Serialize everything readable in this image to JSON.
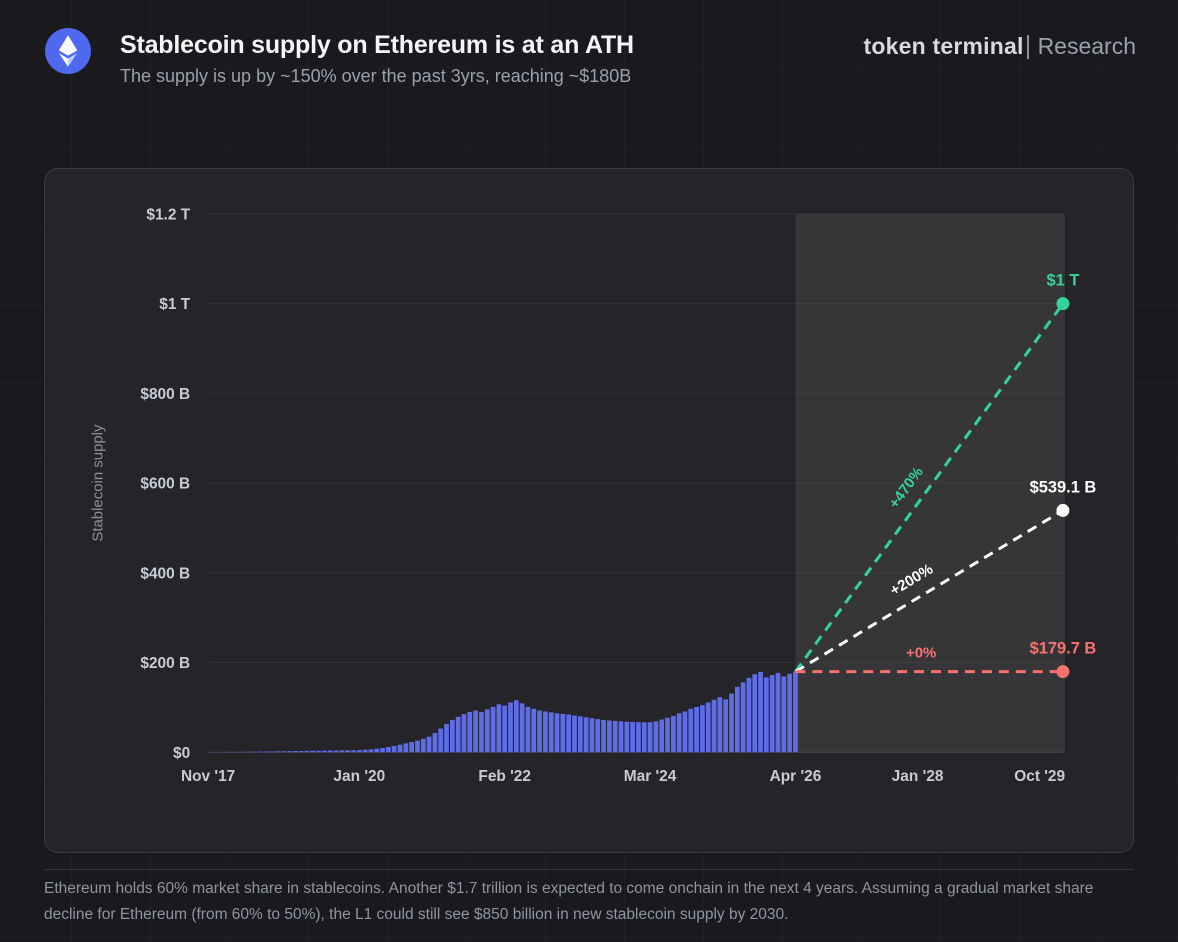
{
  "header": {
    "title": "Stablecoin supply on Ethereum is at an ATH",
    "subtitle": "The supply is up by ~150% over the past 3yrs, reaching ~$180B",
    "brand": "token terminal",
    "brand_suffix": "Research",
    "logo_icon": "ethereum-icon",
    "logo_color": "#4e68f0"
  },
  "footnote": "Ethereum holds 60% market share in stablecoins. Another $1.7 trillion is expected to come onchain in the next 4 years. Assuming a gradual market share decline for Ethereum (from 60% to 50%), the L1 could still see $850 billion in new stablecoin supply by 2030.",
  "chart_data": {
    "type": "area",
    "title": "",
    "xlabel": "",
    "ylabel": "Stablecoin supply",
    "x_unit": "months since Nov 2017",
    "ylim": [
      0,
      1200
    ],
    "grid": true,
    "y_ticks": [
      {
        "label": "$0",
        "v": 0
      },
      {
        "label": "$200 B",
        "v": 200
      },
      {
        "label": "$400 B",
        "v": 400
      },
      {
        "label": "$600 B",
        "v": 600
      },
      {
        "label": "$800 B",
        "v": 800
      },
      {
        "label": "$1 T",
        "v": 1000
      },
      {
        "label": "$1.2 T",
        "v": 1200
      }
    ],
    "x_ticks": [
      {
        "label": "Nov '17",
        "m": 0
      },
      {
        "label": "Jan '20",
        "m": 26
      },
      {
        "label": "Feb '22",
        "m": 51
      },
      {
        "label": "Mar '24",
        "m": 76
      },
      {
        "label": "Apr '26",
        "m": 101
      },
      {
        "label": "Jan '28",
        "m": 122
      },
      {
        "label": "Oct '29",
        "m": 143
      }
    ],
    "history": {
      "name": "Stablecoin supply on Ethereum ($B)",
      "color": "#5e6ce6",
      "points": [
        [
          0,
          0.3
        ],
        [
          3,
          0.6
        ],
        [
          6,
          1.0
        ],
        [
          9,
          1.5
        ],
        [
          12,
          2.2
        ],
        [
          15,
          2.8
        ],
        [
          18,
          3.4
        ],
        [
          21,
          3.9
        ],
        [
          24,
          4.4
        ],
        [
          26,
          5.0
        ],
        [
          28,
          6.5
        ],
        [
          30,
          9.5
        ],
        [
          32,
          14
        ],
        [
          33,
          17
        ],
        [
          34,
          20
        ],
        [
          35,
          23
        ],
        [
          36,
          26
        ],
        [
          37,
          30
        ],
        [
          38,
          35
        ],
        [
          39,
          43
        ],
        [
          40,
          53
        ],
        [
          41,
          63
        ],
        [
          42,
          72
        ],
        [
          43,
          79
        ],
        [
          44,
          85
        ],
        [
          45,
          90
        ],
        [
          46,
          93
        ],
        [
          47,
          90
        ],
        [
          48,
          96
        ],
        [
          49,
          101
        ],
        [
          50,
          107
        ],
        [
          51,
          104
        ],
        [
          52,
          111
        ],
        [
          53,
          116
        ],
        [
          54,
          109
        ],
        [
          55,
          101
        ],
        [
          56,
          97
        ],
        [
          57,
          93
        ],
        [
          58,
          91
        ],
        [
          59,
          89
        ],
        [
          60,
          87
        ],
        [
          62,
          84
        ],
        [
          64,
          80
        ],
        [
          66,
          76
        ],
        [
          68,
          72
        ],
        [
          70,
          70
        ],
        [
          72,
          68
        ],
        [
          74,
          67
        ],
        [
          76,
          67
        ],
        [
          77,
          69
        ],
        [
          78,
          73
        ],
        [
          79,
          77
        ],
        [
          80,
          81
        ],
        [
          81,
          87
        ],
        [
          82,
          91
        ],
        [
          83,
          97
        ],
        [
          84,
          101
        ],
        [
          85,
          105
        ],
        [
          86,
          111
        ],
        [
          87,
          117
        ],
        [
          88,
          123
        ],
        [
          89,
          118
        ],
        [
          90,
          131
        ],
        [
          91,
          146
        ],
        [
          92,
          156
        ],
        [
          93,
          166
        ],
        [
          94,
          174
        ],
        [
          95,
          179
        ],
        [
          96,
          167
        ],
        [
          97,
          172
        ],
        [
          98,
          177
        ],
        [
          99,
          169
        ],
        [
          100,
          175
        ],
        [
          101,
          180
        ]
      ]
    },
    "forecast": {
      "start_m": 101,
      "end_m": 147,
      "start_value": 179.7,
      "region_color": "rgba(255,255,255,0.08)",
      "projections": [
        {
          "name": "bull",
          "pct_label": "+470%",
          "end_value": 1000,
          "end_label": "$1 T",
          "color": "#34d399"
        },
        {
          "name": "base",
          "pct_label": "+200%",
          "end_value": 539.1,
          "end_label": "$539.1 B",
          "color": "#ffffff"
        },
        {
          "name": "bear",
          "pct_label": "+0%",
          "end_value": 179.7,
          "end_label": "$179.7 B",
          "color": "#f87171"
        }
      ]
    }
  }
}
